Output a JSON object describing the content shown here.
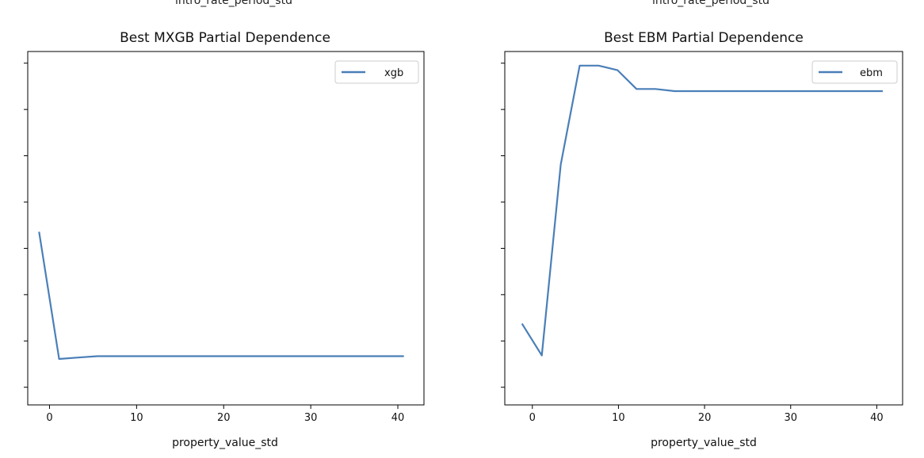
{
  "top_cutoff_labels": [
    "intro_rate_period_std",
    "intro_rate_period_std"
  ],
  "chart_data": [
    {
      "type": "line",
      "title": "Best MXGB Partial Dependence",
      "xlabel": "property_value_std",
      "ylabel": "",
      "xlim": [
        -2.5,
        43
      ],
      "ylim": [
        0,
        100
      ],
      "xticks": [
        0,
        10,
        20,
        30,
        40
      ],
      "xtick_labels": [
        "0",
        "10",
        "20",
        "30",
        "40"
      ],
      "yticks": [
        5,
        18.1,
        31.2,
        44.3,
        57.4,
        70.5,
        83.6,
        96.7
      ],
      "legend_position": "upper-right",
      "grid": false,
      "color": "#4a7fb8",
      "series": [
        {
          "name": "xgb",
          "x": [
            -1.2,
            1.1,
            3.3,
            5.5,
            10,
            20,
            30,
            40.7
          ],
          "y": [
            49,
            13,
            13.4,
            13.8,
            13.8,
            13.8,
            13.8,
            13.8
          ]
        }
      ]
    },
    {
      "type": "line",
      "title": "Best EBM Partial Dependence",
      "xlabel": "property_value_std",
      "ylabel": "",
      "xlim": [
        -3.2,
        43
      ],
      "ylim": [
        0,
        100
      ],
      "xticks": [
        0,
        10,
        20,
        30,
        40
      ],
      "xtick_labels": [
        "0",
        "10",
        "20",
        "30",
        "40"
      ],
      "yticks": [
        5,
        18.1,
        31.2,
        44.3,
        57.4,
        70.5,
        83.6,
        96.7
      ],
      "legend_position": "upper-right",
      "grid": false,
      "color": "#4a7fb8",
      "series": [
        {
          "name": "ebm",
          "x": [
            -1.2,
            1.1,
            3.3,
            5.5,
            7.7,
            9.9,
            12.1,
            14.3,
            16.5,
            40.7
          ],
          "y": [
            23,
            14,
            68,
            96,
            96,
            94.7,
            89.4,
            89.4,
            88.8,
            88.8
          ]
        }
      ]
    }
  ]
}
